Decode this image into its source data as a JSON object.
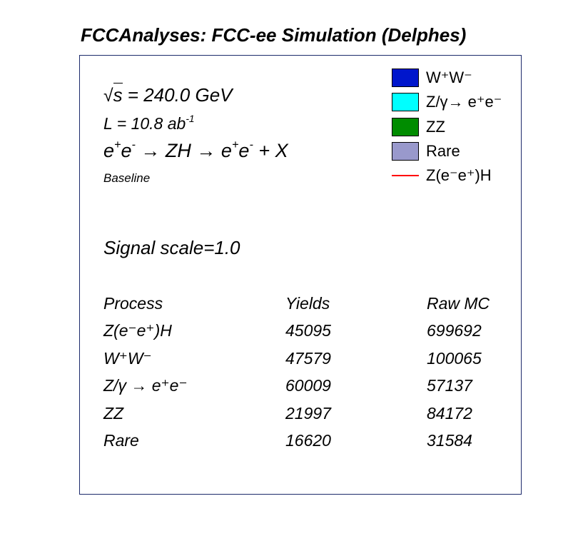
{
  "chart_data": {
    "type": "table",
    "title": "FCCAnalyses: FCC-ee Simulation (Delphes)",
    "annotations": {
      "sqrt_s": "= 240.0 GeV",
      "sqrt_s_symbol": "s",
      "lumi_prefix": "L = 10.8 ab",
      "lumi_exp": "-1",
      "channel_part1": "e",
      "channel_part2": "e",
      "channel_part3": " → ZH → e",
      "channel_part4": "e",
      "channel_part5": " + X",
      "selection": "Baseline",
      "signal_scale": "Signal scale=1.0"
    },
    "legend": [
      {
        "label": "W⁺W⁻",
        "color": "#0016cc",
        "style": "fill"
      },
      {
        "label": "Z/γ→ e⁺e⁻",
        "color": "#00ffff",
        "style": "fill"
      },
      {
        "label": "ZZ",
        "color": "#008c00",
        "style": "fill"
      },
      {
        "label": "Rare",
        "color": "#9999cc",
        "style": "fill"
      },
      {
        "label": "Z(e⁻e⁺)H",
        "color": "#ff0000",
        "style": "line"
      }
    ],
    "columns": [
      "Process",
      "Yields",
      "Raw MC"
    ],
    "rows": [
      {
        "process": "Z(e⁻e⁺)H",
        "yields": "45095",
        "raw_mc": "699692"
      },
      {
        "process": "W⁺W⁻",
        "yields": "47579",
        "raw_mc": "100065"
      },
      {
        "process": "Z/γ → e⁺e⁻",
        "yields": "60009",
        "raw_mc": "57137"
      },
      {
        "process": "ZZ",
        "yields": "21997",
        "raw_mc": "84172"
      },
      {
        "process": "Rare",
        "yields": "16620",
        "raw_mc": "31584"
      }
    ]
  }
}
